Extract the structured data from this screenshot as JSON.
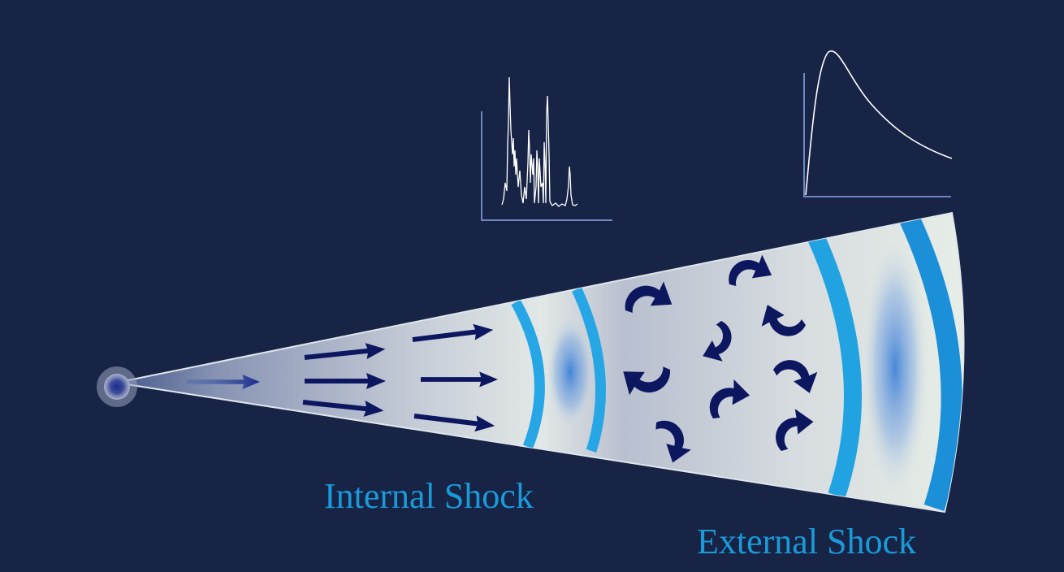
{
  "labels": {
    "internal_shock": "Internal Shock",
    "external_shock": "External Shock"
  },
  "colors": {
    "background": "#172445",
    "label_text": "#1a9ad9",
    "shock_front": "#1fa4e3",
    "cone_fill": "#dfe5e6",
    "arrow": "#0d1760",
    "light_curve": "#ffffff",
    "axis": "#6f86c0"
  },
  "icons": {
    "straight_arrow": "arrow-right-icon",
    "curved_arrow": "curved-arrow-icon"
  }
}
